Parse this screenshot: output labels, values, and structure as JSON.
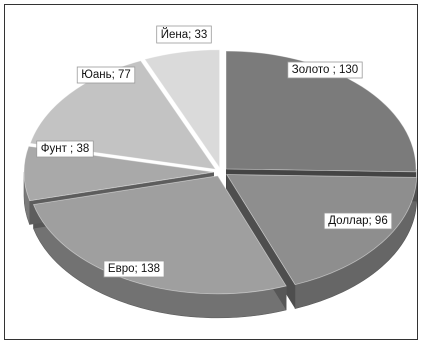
{
  "chart_data": {
    "type": "pie",
    "title": "",
    "slices": [
      {
        "label": "Золото ; 130",
        "category": "Золото",
        "value": 130,
        "color": "#7b7b7b"
      },
      {
        "label": "Доллар; 96",
        "category": "Доллар",
        "value": 96,
        "color": "#8e8e8e"
      },
      {
        "label": "Евро; 138",
        "category": "Евро",
        "value": 138,
        "color": "#9f9f9f"
      },
      {
        "label": "Фунт ; 38",
        "category": "Фунт",
        "value": 38,
        "color": "#a9a9a9"
      },
      {
        "label": "Юань; 77",
        "category": "Юань",
        "value": 77,
        "color": "#c3c3c3"
      },
      {
        "label": "Йена; 33",
        "category": "Йена",
        "value": 33,
        "color": "#dadada"
      }
    ],
    "style": "3d-exploded-pie",
    "legend": "none"
  }
}
